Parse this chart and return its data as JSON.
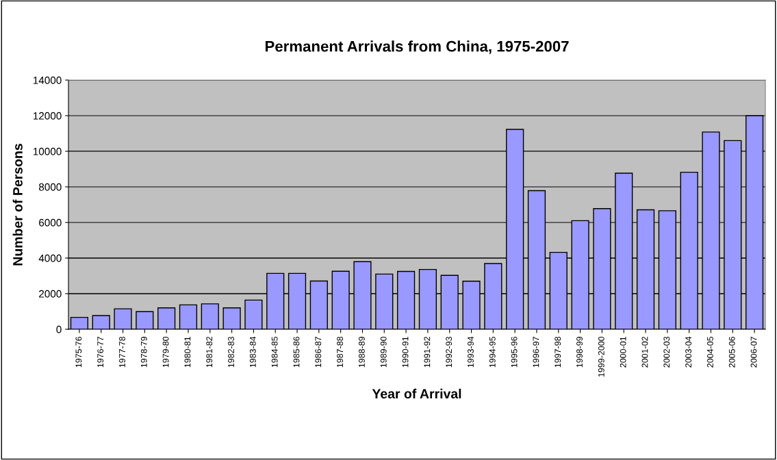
{
  "chart_data": {
    "type": "bar",
    "title": "Permanent Arrivals from China, 1975-2007",
    "xlabel": "Year of Arrival",
    "ylabel": "Number of Persons",
    "categories": [
      "1975-76",
      "1976-77",
      "1977-78",
      "1978-79",
      "1979-80",
      "1980-81",
      "1981-82",
      "1982-83",
      "1983-84",
      "1984-85",
      "1985-86",
      "1986-87",
      "1987-88",
      "1988-89",
      "1989-90",
      "1990-91",
      "1991-92",
      "1992-93",
      "1993-94",
      "1994-95",
      "1995-96",
      "1996-97",
      "1997-98",
      "1998-99",
      "1999-2000",
      "2000-01",
      "2001-02",
      "2002-03",
      "2003-04",
      "2004-05",
      "2005-06",
      "2006-07"
    ],
    "values": [
      670,
      770,
      1150,
      990,
      1200,
      1370,
      1430,
      1200,
      1640,
      3140,
      3140,
      2710,
      3260,
      3800,
      3100,
      3250,
      3360,
      3030,
      2700,
      3690,
      11230,
      7790,
      4320,
      6100,
      6780,
      8770,
      6710,
      6660,
      8820,
      11080,
      10600,
      12000
    ],
    "color": "#9999ff",
    "ylim": [
      0,
      14000
    ],
    "yticks": [
      0,
      2000,
      4000,
      6000,
      8000,
      10000,
      12000,
      14000
    ],
    "grid": "y",
    "legend": false
  }
}
